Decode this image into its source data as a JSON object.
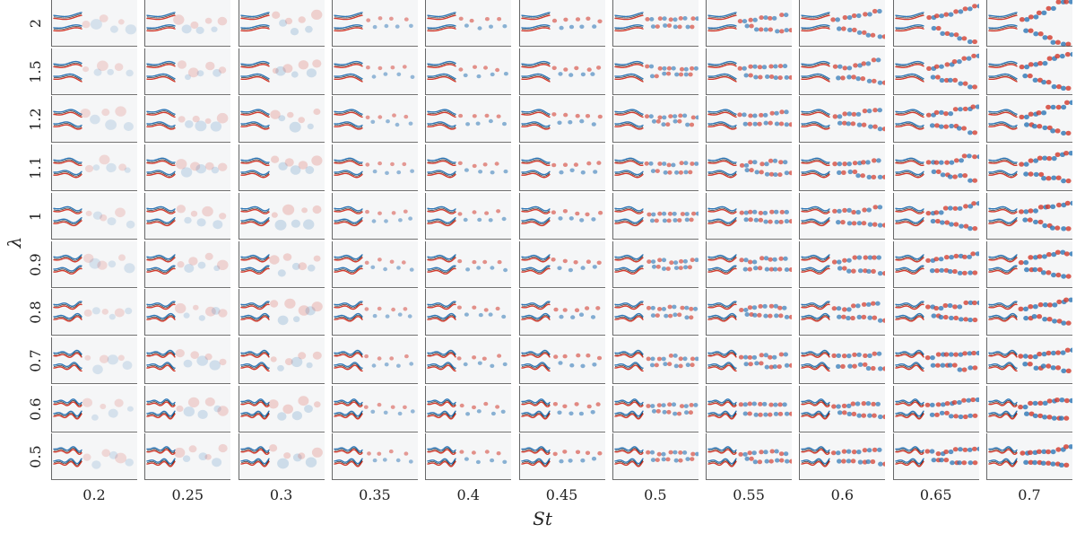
{
  "figure": {
    "x_axis_label": "St",
    "y_axis_label": "λ",
    "st_values": [
      "0.2",
      "0.25",
      "0.3",
      "0.35",
      "0.4",
      "0.45",
      "0.5",
      "0.55",
      "0.6",
      "0.65",
      "0.7"
    ],
    "lambda_values": [
      "2",
      "1.5",
      "1.2",
      "1.1",
      "1",
      "0.9",
      "0.8",
      "0.7",
      "0.6",
      "0.5"
    ],
    "colors": {
      "positive_vorticity": "#d33a2c",
      "negative_vorticity": "#2f77b6",
      "background": "#f5f6f7",
      "body_outline": "#111111"
    }
  }
}
